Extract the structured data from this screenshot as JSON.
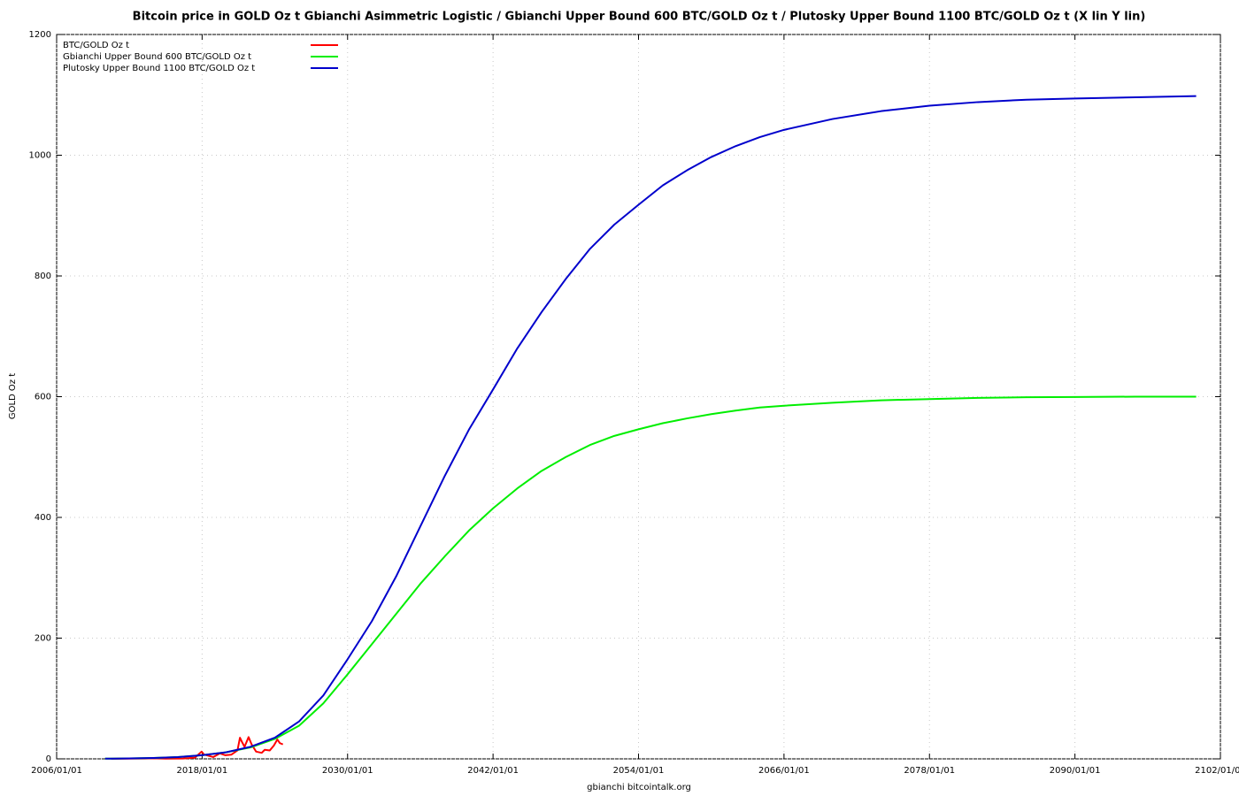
{
  "chart_data": {
    "type": "line",
    "title": "Bitcoin price in GOLD Oz t Gbianchi Asimmetric Logistic / Gbianchi Upper Bound 600  BTC/GOLD Oz t / Plutosky Upper Bound 1100  BTC/GOLD Oz t  (X lin Y lin)",
    "x_label": "gbianchi bitcointalk.org",
    "y_label": "GOLD Oz t",
    "xlim": [
      "2006/01/01",
      "2102/01/01"
    ],
    "xticks": [
      "2006/01/01",
      "2018/01/01",
      "2030/01/01",
      "2042/01/01",
      "2054/01/01",
      "2066/01/01",
      "2078/01/01",
      "2090/01/01",
      "2102/01/01"
    ],
    "ylim": [
      0,
      1200
    ],
    "yticks": [
      0,
      200,
      400,
      600,
      800,
      1000,
      1200
    ],
    "grid": true,
    "legend": "top-left",
    "series": [
      {
        "name": "BTC/GOLD Oz t",
        "color": "#ff0000",
        "x": [
          "2010/07/01",
          "2012/01/01",
          "2013/04/01",
          "2013/12/01",
          "2015/01/01",
          "2016/06/01",
          "2017/06/01",
          "2017/12/15",
          "2018/03/01",
          "2018/12/01",
          "2019/06/15",
          "2019/12/01",
          "2020/06/01",
          "2020/12/01",
          "2021/02/15",
          "2021/04/15",
          "2021/07/01",
          "2021/11/01",
          "2022/02/01",
          "2022/06/15",
          "2022/12/01",
          "2023/03/01",
          "2023/08/01",
          "2023/12/01",
          "2024/03/15",
          "2024/06/01",
          "2024/09/01"
        ],
        "values": [
          0.1,
          0.3,
          0.6,
          1.0,
          0.3,
          0.5,
          2,
          12,
          7,
          3,
          9,
          6,
          7,
          14,
          35,
          28,
          20,
          36,
          24,
          12,
          10,
          15,
          14,
          22,
          32,
          26,
          24
        ]
      },
      {
        "name": "Gbianchi Upper Bound 600  BTC/GOLD Oz t",
        "color": "#00ee00",
        "x": [
          "2010/01/01",
          "2012/01/01",
          "2014/01/01",
          "2016/01/01",
          "2018/01/01",
          "2020/01/01",
          "2022/01/01",
          "2024/01/01",
          "2026/01/01",
          "2028/01/01",
          "2030/01/01",
          "2032/01/01",
          "2034/01/01",
          "2036/01/01",
          "2038/01/01",
          "2040/01/01",
          "2042/01/01",
          "2044/01/01",
          "2046/01/01",
          "2048/01/01",
          "2050/01/01",
          "2052/01/01",
          "2054/01/01",
          "2056/01/01",
          "2058/01/01",
          "2060/01/01",
          "2062/01/01",
          "2064/01/01",
          "2066/01/01",
          "2070/01/01",
          "2074/01/01",
          "2078/01/01",
          "2082/01/01",
          "2086/01/01",
          "2090/01/01",
          "2095/01/01",
          "2100/01/01"
        ],
        "values": [
          0.3,
          0.7,
          1.5,
          3,
          6,
          11,
          19,
          33,
          55,
          92,
          140,
          190,
          240,
          290,
          335,
          378,
          415,
          448,
          477,
          500,
          520,
          535,
          546,
          556,
          564,
          571,
          577,
          582,
          585,
          590,
          594,
          596,
          598,
          599,
          599.5,
          600,
          600
        ]
      },
      {
        "name": "Plutosky Upper Bound 1100  BTC/GOLD Oz t",
        "color": "#0000cc",
        "x": [
          "2010/01/01",
          "2012/01/01",
          "2014/01/01",
          "2016/01/01",
          "2018/01/01",
          "2020/01/01",
          "2022/01/01",
          "2024/01/01",
          "2026/01/01",
          "2028/01/01",
          "2030/01/01",
          "2032/01/01",
          "2034/01/01",
          "2036/01/01",
          "2038/01/01",
          "2040/01/01",
          "2042/01/01",
          "2044/01/01",
          "2046/01/01",
          "2048/01/01",
          "2050/01/01",
          "2052/01/01",
          "2054/01/01",
          "2056/01/01",
          "2058/01/01",
          "2060/01/01",
          "2062/01/01",
          "2064/01/01",
          "2066/01/01",
          "2070/01/01",
          "2074/01/01",
          "2078/01/01",
          "2082/01/01",
          "2086/01/01",
          "2090/01/01",
          "2095/01/01",
          "2100/01/01"
        ],
        "values": [
          0.3,
          0.7,
          1.5,
          3,
          6,
          11,
          20,
          35,
          62,
          105,
          165,
          228,
          302,
          385,
          468,
          545,
          612,
          680,
          740,
          795,
          845,
          885,
          918,
          950,
          975,
          997,
          1015,
          1030,
          1042,
          1060,
          1073,
          1082,
          1088,
          1092,
          1094,
          1096,
          1098
        ]
      }
    ]
  }
}
